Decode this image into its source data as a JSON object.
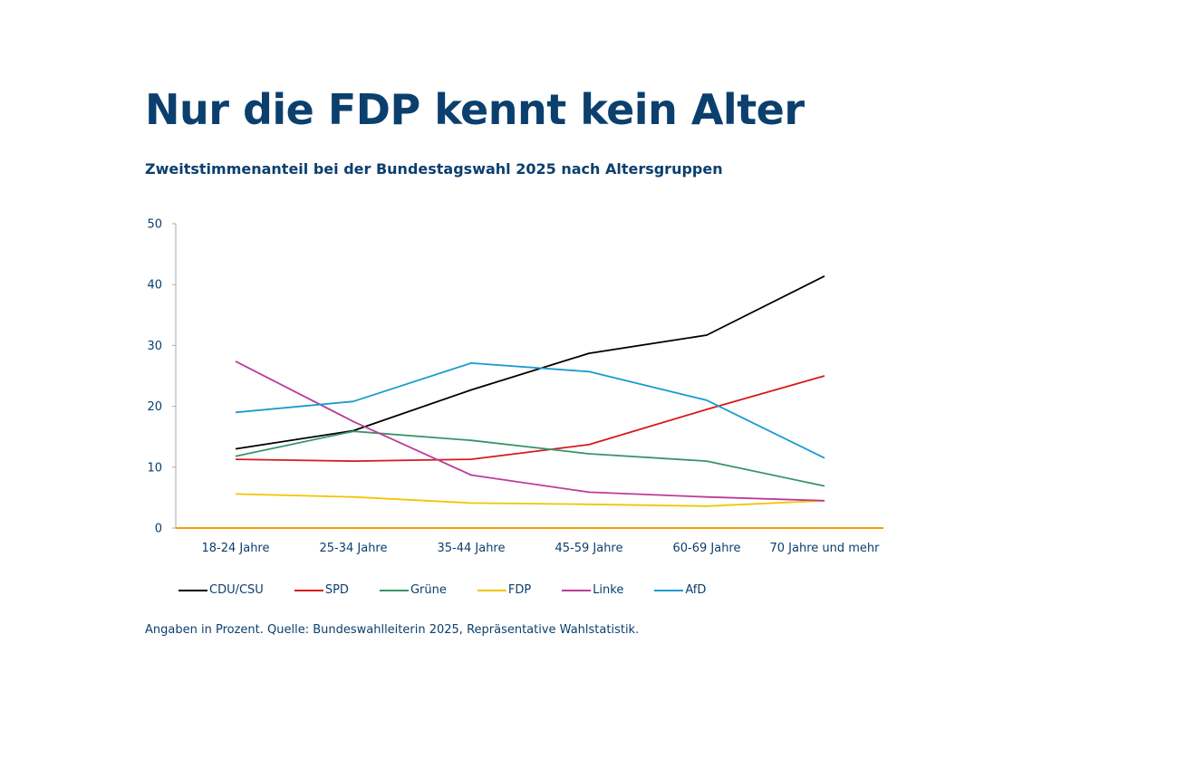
{
  "chart_data": {
    "type": "line",
    "title": "Nur die FDP kennt kein Alter",
    "subtitle": "Zweitstimmenanteil bei der Bundestagswahl 2025 nach Altersgruppen",
    "categories": [
      "18-24 Jahre",
      "25-34 Jahre",
      "35-44 Jahre",
      "45-59 Jahre",
      "60-69 Jahre",
      "70 Jahre und mehr"
    ],
    "ylim": [
      0,
      50
    ],
    "yticks": [
      0,
      10,
      20,
      30,
      40,
      50
    ],
    "grid": false,
    "legend_position": "bottom",
    "series": [
      {
        "name": "CDU/CSU",
        "color": "#000000",
        "values": [
          13.0,
          16.0,
          22.7,
          28.7,
          31.7,
          41.4
        ]
      },
      {
        "name": "SPD",
        "color": "#d7191c",
        "values": [
          11.3,
          11.0,
          11.3,
          13.7,
          19.5,
          25.0
        ]
      },
      {
        "name": "Grüne",
        "color": "#3a9467",
        "values": [
          11.8,
          15.9,
          14.4,
          12.2,
          11.0,
          6.9
        ]
      },
      {
        "name": "FDP",
        "color": "#f2c500",
        "values": [
          5.6,
          5.1,
          4.1,
          3.9,
          3.6,
          4.5
        ]
      },
      {
        "name": "Linke",
        "color": "#bd3c97",
        "values": [
          27.4,
          17.5,
          8.7,
          5.9,
          5.1,
          4.5
        ]
      },
      {
        "name": "AfD",
        "color": "#1a9bd0",
        "values": [
          19.0,
          20.8,
          27.1,
          25.7,
          21.0,
          11.5
        ]
      }
    ],
    "note": "Angaben in Prozent. Quelle: Bundeswahlleiterin 2025, Repräsentative Wahlstatistik.",
    "axis_colors": {
      "y_axis": "#aaaaaa",
      "x_axis": "#f29d00"
    }
  }
}
